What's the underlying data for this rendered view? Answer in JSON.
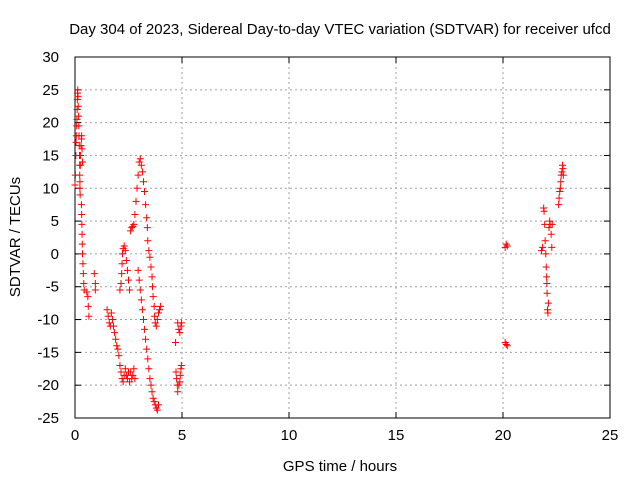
{
  "colors": {
    "series": "#ff0000",
    "axis": "#000000",
    "grid": "#a0a0a0",
    "background": "#ffffff"
  },
  "chart_data": {
    "type": "scatter",
    "title": "Day 304 of 2023, Sidereal Day-to-day VTEC variation (SDTVAR) for receiver ufcd",
    "xlabel": "GPS time / hours",
    "ylabel": "SDTVAR / TECUs",
    "xlim": [
      0,
      25
    ],
    "ylim": [
      -25,
      30
    ],
    "xticks": [
      0,
      5,
      10,
      15,
      20,
      25
    ],
    "yticks": [
      -25,
      -20,
      -15,
      -10,
      -5,
      0,
      5,
      10,
      15,
      20,
      25,
      30
    ],
    "grid": true,
    "marker": "+",
    "series": [
      {
        "name": "SDTVAR",
        "points": [
          [
            0.0,
            10.5
          ],
          [
            0.02,
            12
          ],
          [
            0.04,
            15
          ],
          [
            0.05,
            17
          ],
          [
            0.06,
            18
          ],
          [
            0.08,
            19.5
          ],
          [
            0.09,
            20.5
          ],
          [
            0.1,
            22
          ],
          [
            0.11,
            23.5
          ],
          [
            0.12,
            24.5
          ],
          [
            0.13,
            25
          ],
          [
            0.14,
            24
          ],
          [
            0.15,
            22.5
          ],
          [
            0.17,
            21
          ],
          [
            0.18,
            19.5
          ],
          [
            0.19,
            18
          ],
          [
            0.2,
            16.5
          ],
          [
            0.21,
            15
          ],
          [
            0.22,
            13.5
          ],
          [
            0.22,
            12
          ],
          [
            0.23,
            11
          ],
          [
            0.23,
            10
          ],
          [
            0.24,
            9
          ],
          [
            0.25,
            13.5
          ],
          [
            0.26,
            15
          ],
          [
            0.28,
            16.5
          ],
          [
            0.3,
            17.5
          ],
          [
            0.31,
            18
          ],
          [
            0.33,
            16
          ],
          [
            0.35,
            14
          ],
          [
            0.3,
            7.5
          ],
          [
            0.31,
            6
          ],
          [
            0.32,
            4.5
          ],
          [
            0.33,
            3
          ],
          [
            0.34,
            1.5
          ],
          [
            0.35,
            0
          ],
          [
            0.37,
            -1.5
          ],
          [
            0.39,
            -3
          ],
          [
            0.41,
            -4.5
          ],
          [
            0.43,
            -5.5
          ],
          [
            0.55,
            -5.8
          ],
          [
            0.6,
            -6.5
          ],
          [
            0.62,
            -8
          ],
          [
            0.65,
            -9.5
          ],
          [
            0.9,
            -3
          ],
          [
            0.95,
            -4.5
          ],
          [
            0.95,
            -5.5
          ],
          [
            1.5,
            -8.5
          ],
          [
            1.55,
            -9.5
          ],
          [
            1.6,
            -10.5
          ],
          [
            1.65,
            -11
          ],
          [
            1.7,
            -9
          ],
          [
            1.75,
            -10
          ],
          [
            1.8,
            -11
          ],
          [
            1.85,
            -12
          ],
          [
            1.9,
            -13
          ],
          [
            1.95,
            -14
          ],
          [
            2.0,
            -14.5
          ],
          [
            2.05,
            -15.5
          ],
          [
            2.1,
            -17
          ],
          [
            2.15,
            -18
          ],
          [
            2.2,
            -19
          ],
          [
            2.25,
            -19.5
          ],
          [
            2.3,
            -18.5
          ],
          [
            2.35,
            -17.5
          ],
          [
            2.4,
            -18.5
          ],
          [
            2.45,
            -19
          ],
          [
            2.5,
            -18
          ],
          [
            2.55,
            -19.5
          ],
          [
            2.6,
            -18
          ],
          [
            2.65,
            -19
          ],
          [
            2.7,
            -18.5
          ],
          [
            2.75,
            -17.5
          ],
          [
            2.8,
            -19
          ],
          [
            2.1,
            -5.5
          ],
          [
            2.15,
            -4.5
          ],
          [
            2.18,
            -3
          ],
          [
            2.2,
            -1.5
          ],
          [
            2.22,
            0
          ],
          [
            2.25,
            0.8
          ],
          [
            2.3,
            1.2
          ],
          [
            2.35,
            0.5
          ],
          [
            2.4,
            -1
          ],
          [
            2.45,
            -2.5
          ],
          [
            2.5,
            -4
          ],
          [
            2.55,
            -5.5
          ],
          [
            2.6,
            3.5
          ],
          [
            2.65,
            4
          ],
          [
            2.7,
            4.2
          ],
          [
            2.75,
            4.5
          ],
          [
            2.8,
            6
          ],
          [
            2.85,
            8
          ],
          [
            2.9,
            10
          ],
          [
            2.95,
            12
          ],
          [
            3.0,
            14
          ],
          [
            3.05,
            14.5
          ],
          [
            3.1,
            13.5
          ],
          [
            3.15,
            12.5
          ],
          [
            3.2,
            11
          ],
          [
            3.25,
            9.5
          ],
          [
            3.3,
            7.5
          ],
          [
            3.35,
            5.5
          ],
          [
            3.38,
            4
          ],
          [
            3.4,
            2
          ],
          [
            3.45,
            0.5
          ],
          [
            3.5,
            -0.5
          ],
          [
            3.55,
            -2
          ],
          [
            3.6,
            -3.5
          ],
          [
            3.62,
            -5
          ],
          [
            3.65,
            -6.5
          ],
          [
            3.7,
            -8
          ],
          [
            3.72,
            -9.5
          ],
          [
            3.75,
            -10.5
          ],
          [
            3.8,
            -11
          ],
          [
            3.85,
            -10
          ],
          [
            3.9,
            -9
          ],
          [
            3.95,
            -8.5
          ],
          [
            4.0,
            -8
          ],
          [
            2.95,
            -2.5
          ],
          [
            3.0,
            -4
          ],
          [
            3.05,
            -5.5
          ],
          [
            3.1,
            -7
          ],
          [
            3.15,
            -8.5
          ],
          [
            3.2,
            -10
          ],
          [
            3.25,
            -11.5
          ],
          [
            3.3,
            -13
          ],
          [
            3.35,
            -14.5
          ],
          [
            3.4,
            -16
          ],
          [
            3.45,
            -17.5
          ],
          [
            3.5,
            -19
          ],
          [
            3.55,
            -20
          ],
          [
            3.6,
            -21
          ],
          [
            3.65,
            -22
          ],
          [
            3.7,
            -22.5
          ],
          [
            3.75,
            -23
          ],
          [
            3.8,
            -23.5
          ],
          [
            3.85,
            -23.8
          ],
          [
            3.9,
            -23
          ],
          [
            4.7,
            -13.5
          ],
          [
            4.72,
            -18
          ],
          [
            4.75,
            -19
          ],
          [
            4.78,
            -20
          ],
          [
            4.8,
            -21
          ],
          [
            4.85,
            -20
          ],
          [
            4.9,
            -19.5
          ],
          [
            4.92,
            -18.5
          ],
          [
            4.95,
            -17.5
          ],
          [
            4.97,
            -17
          ],
          [
            4.8,
            -10.5
          ],
          [
            4.85,
            -11.5
          ],
          [
            4.9,
            -12
          ],
          [
            4.95,
            -11
          ],
          [
            4.98,
            -10.5
          ],
          [
            20.1,
            1
          ],
          [
            20.15,
            1.5
          ],
          [
            20.2,
            1.2
          ],
          [
            20.1,
            -13.5
          ],
          [
            20.15,
            -13.8
          ],
          [
            20.2,
            -14
          ],
          [
            21.8,
            0.5
          ],
          [
            21.85,
            1
          ],
          [
            21.9,
            7
          ],
          [
            21.92,
            6.5
          ],
          [
            21.95,
            4.5
          ],
          [
            21.97,
            2
          ],
          [
            22.0,
            0
          ],
          [
            22.02,
            -2
          ],
          [
            22.04,
            -3.5
          ],
          [
            22.05,
            -4.5
          ],
          [
            22.06,
            -6
          ],
          [
            22.08,
            -8.5
          ],
          [
            22.1,
            -9
          ],
          [
            22.12,
            -7.5
          ],
          [
            22.15,
            4
          ],
          [
            22.18,
            5
          ],
          [
            22.2,
            4.5
          ],
          [
            22.25,
            3
          ],
          [
            22.28,
            1
          ],
          [
            22.3,
            4.5
          ],
          [
            22.6,
            7.5
          ],
          [
            22.62,
            8.5
          ],
          [
            22.65,
            9.5
          ],
          [
            22.68,
            10
          ],
          [
            22.7,
            11
          ],
          [
            22.72,
            12
          ],
          [
            22.75,
            12.5
          ],
          [
            22.78,
            13.5
          ],
          [
            22.8,
            13
          ],
          [
            22.82,
            12
          ]
        ]
      }
    ]
  }
}
